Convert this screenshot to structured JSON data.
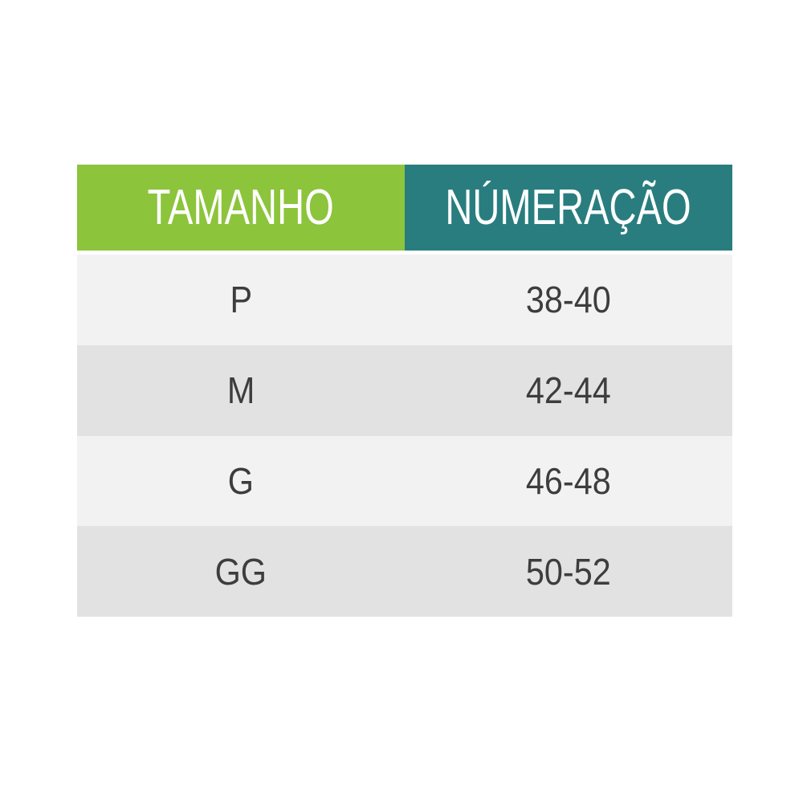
{
  "table": {
    "header": {
      "size_label": "TAMANHO",
      "numeration_label": "NÚMERAÇÃO"
    },
    "rows": [
      {
        "size": "P",
        "numeration": "38-40"
      },
      {
        "size": "M",
        "numeration": "42-44"
      },
      {
        "size": "G",
        "numeration": "46-48"
      },
      {
        "size": "GG",
        "numeration": "50-52"
      }
    ],
    "colors": {
      "size_header_bg": "#8cc43c",
      "numeration_header_bg": "#297d7f",
      "header_text": "#ffffff",
      "row_light_bg": "#f2f2f2",
      "row_dark_bg": "#e2e2e3",
      "cell_text": "#3d3d3d",
      "page_bg": "#ffffff"
    }
  },
  "chart_data": {
    "type": "table",
    "title": "",
    "columns": [
      "TAMANHO",
      "NÚMERAÇÃO"
    ],
    "rows": [
      [
        "P",
        "38-40"
      ],
      [
        "M",
        "42-44"
      ],
      [
        "G",
        "46-48"
      ],
      [
        "GG",
        "50-52"
      ]
    ]
  }
}
